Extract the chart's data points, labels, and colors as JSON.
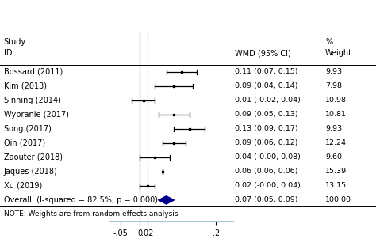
{
  "studies": [
    {
      "label": "Bossard (2011)",
      "wmd": 0.11,
      "ci_lo": 0.07,
      "ci_hi": 0.15,
      "weight": 9.93,
      "wmd_text": "0.11 (0.07, 0.15)",
      "weight_text": "9.93"
    },
    {
      "label": "Kim (2013)",
      "wmd": 0.09,
      "ci_lo": 0.04,
      "ci_hi": 0.14,
      "weight": 7.98,
      "wmd_text": "0.09 (0.04, 0.14)",
      "weight_text": "7.98"
    },
    {
      "label": "Sinning (2014)",
      "wmd": 0.01,
      "ci_lo": -0.02,
      "ci_hi": 0.04,
      "weight": 10.98,
      "wmd_text": "0.01 (-0.02, 0.04)",
      "weight_text": "10.98"
    },
    {
      "label": "Wybranie (2017)",
      "wmd": 0.09,
      "ci_lo": 0.05,
      "ci_hi": 0.13,
      "weight": 10.81,
      "wmd_text": "0.09 (0.05, 0.13)",
      "weight_text": "10.81"
    },
    {
      "label": "Song (2017)",
      "wmd": 0.13,
      "ci_lo": 0.09,
      "ci_hi": 0.17,
      "weight": 9.93,
      "wmd_text": "0.13 (0.09, 0.17)",
      "weight_text": "9.93"
    },
    {
      "label": "Qin (2017)",
      "wmd": 0.09,
      "ci_lo": 0.06,
      "ci_hi": 0.12,
      "weight": 12.24,
      "wmd_text": "0.09 (0.06, 0.12)",
      "weight_text": "12.24"
    },
    {
      "label": "Zaouter (2018)",
      "wmd": 0.04,
      "ci_lo": 0.0,
      "ci_hi": 0.08,
      "weight": 9.6,
      "wmd_text": "0.04 (-0.00, 0.08)",
      "weight_text": "9.60"
    },
    {
      "label": "Jaques (2018)",
      "wmd": 0.06,
      "ci_lo": 0.06,
      "ci_hi": 0.06,
      "weight": 15.39,
      "wmd_text": "0.06 (0.06, 0.06)",
      "weight_text": "15.39"
    },
    {
      "label": "Xu (2019)",
      "wmd": 0.02,
      "ci_lo": 0.0,
      "ci_hi": 0.04,
      "weight": 13.15,
      "wmd_text": "0.02 (-0.00, 0.04)",
      "weight_text": "13.15"
    }
  ],
  "overall": {
    "label": "Overall  (I-squared = 82.5%, p = 0.000)",
    "wmd": 0.07,
    "ci_lo": 0.05,
    "ci_hi": 0.09,
    "wmd_text": "0.07 (0.05, 0.09)",
    "weight_text": "100.00"
  },
  "xlim": [
    -0.08,
    0.245
  ],
  "xticks": [
    -0.05,
    0.0,
    0.02,
    0.2
  ],
  "xtick_labels": [
    "-.05",
    "0",
    ".02",
    ".2"
  ],
  "zero_line": 0.0,
  "dashed_line": 0.02,
  "header_study": "Study",
  "header_id": "ID",
  "header_pct": "%",
  "header_wmd": "WMD (95% CI)",
  "header_weight": "Weight",
  "note": "NOTE: Weights are from random effects analysis",
  "diamond_color": "#00008B",
  "marker_color": "black",
  "line_color": "black",
  "dashed_color": "#888888",
  "font_size": 7.0,
  "bg_axis_color": "#dce9f0"
}
